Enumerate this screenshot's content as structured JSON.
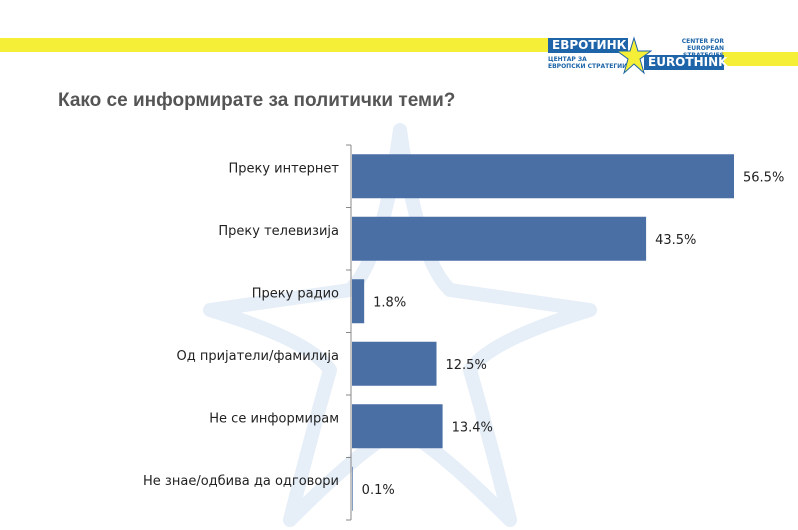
{
  "title": "Како се информирате за политички теми?",
  "logo": {
    "cyrillic_name": "ЕВРОТИНК",
    "latin_name": "EUROTHINK",
    "tagline_en_1": "CENTER FOR",
    "tagline_en_2": "EUROPEAN STRATEGIES",
    "tagline_mk_1": "ЦЕНТАР ЗА",
    "tagline_mk_2": "ЕВРОПСКИ СТРАТЕГИИ"
  },
  "colors": {
    "bar": "#4a6fa5",
    "stripe": "#f5f037",
    "brand": "#1d64a8"
  },
  "chart_data": {
    "type": "bar",
    "orientation": "horizontal",
    "categories": [
      "Преку интернет",
      "Преку телевизија",
      "Преку радио",
      "Од пријатели/фамилија",
      "Не се информирам",
      "Не знае/одбива да одговори"
    ],
    "values": [
      56.5,
      43.5,
      1.8,
      12.5,
      13.4,
      0.1
    ],
    "data_labels": [
      "56.5%",
      "43.5%",
      "1.8%",
      "12.5%",
      "13.4%",
      "0.1%"
    ],
    "xlim": [
      0,
      60
    ],
    "grid": false
  }
}
